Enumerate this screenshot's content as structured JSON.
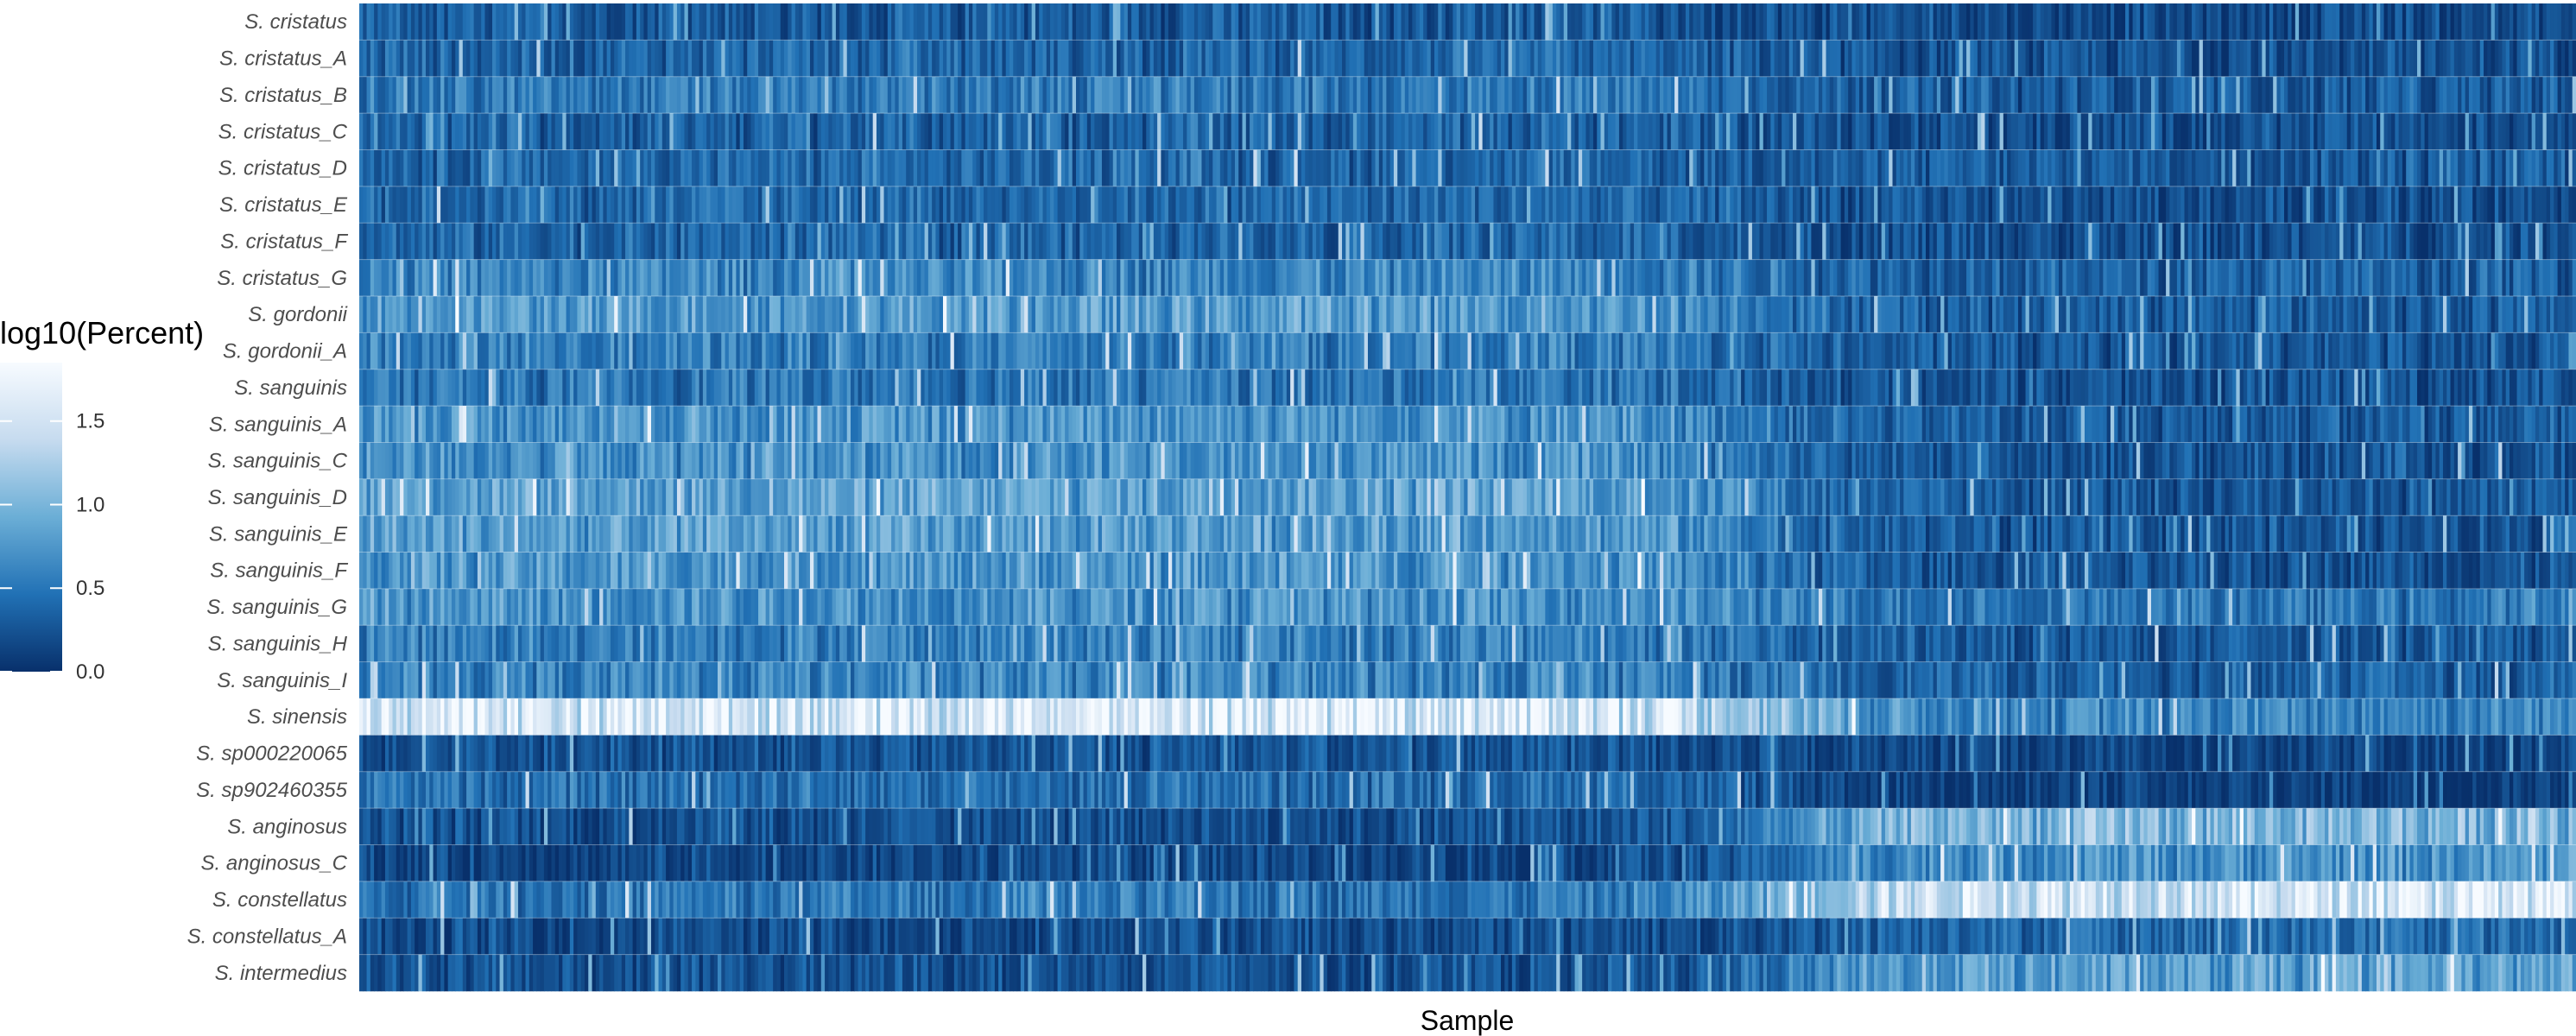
{
  "chart_data": {
    "type": "heatmap",
    "title": "",
    "xlabel": "Sample",
    "ylabel": "",
    "rows": [
      "S. cristatus",
      "S. cristatus_A",
      "S. cristatus_B",
      "S. cristatus_C",
      "S. cristatus_D",
      "S. cristatus_E",
      "S. cristatus_F",
      "S. cristatus_G",
      "S. gordonii",
      "S. gordonii_A",
      "S. sanguinis",
      "S. sanguinis_A",
      "S. sanguinis_C",
      "S. sanguinis_D",
      "S. sanguinis_E",
      "S. sanguinis_F",
      "S. sanguinis_G",
      "S. sanguinis_H",
      "S. sanguinis_I",
      "S. sinensis",
      "S. sp000220065",
      "S. sp902460355",
      "S. anginosus",
      "S. anginosus_C",
      "S. constellatus",
      "S. constellatus_A",
      "S. intermedius"
    ],
    "approx_column_count": 600,
    "row_mean_profiles": {
      "segments": [
        "first 64% of samples",
        "last 36% of samples"
      ],
      "values": [
        [
          0.3,
          0.18
        ],
        [
          0.38,
          0.22
        ],
        [
          0.52,
          0.3
        ],
        [
          0.36,
          0.22
        ],
        [
          0.4,
          0.3
        ],
        [
          0.4,
          0.22
        ],
        [
          0.38,
          0.22
        ],
        [
          0.62,
          0.36
        ],
        [
          0.78,
          0.32
        ],
        [
          0.56,
          0.26
        ],
        [
          0.5,
          0.24
        ],
        [
          0.74,
          0.3
        ],
        [
          0.7,
          0.26
        ],
        [
          0.84,
          0.28
        ],
        [
          0.8,
          0.26
        ],
        [
          0.74,
          0.24
        ],
        [
          0.72,
          0.5
        ],
        [
          0.58,
          0.3
        ],
        [
          0.6,
          0.34
        ],
        [
          1.58,
          0.62
        ],
        [
          0.26,
          0.14
        ],
        [
          0.46,
          0.1
        ],
        [
          0.22,
          1.02
        ],
        [
          0.16,
          0.72
        ],
        [
          0.5,
          1.55
        ],
        [
          0.2,
          0.42
        ],
        [
          0.24,
          0.8
        ]
      ]
    },
    "colorbar": {
      "title": "log10(Percent)",
      "range": [
        0.0,
        1.85
      ],
      "ticks": [
        0.0,
        0.5,
        1.0,
        1.5
      ],
      "tick_labels": [
        "0.0",
        "0.5",
        "1.0",
        "1.5"
      ],
      "colors": [
        "#08306b",
        "#2171b5",
        "#6baed6",
        "#c6dbef",
        "#f7fbff"
      ]
    },
    "legend_position": "left",
    "grid": false
  }
}
